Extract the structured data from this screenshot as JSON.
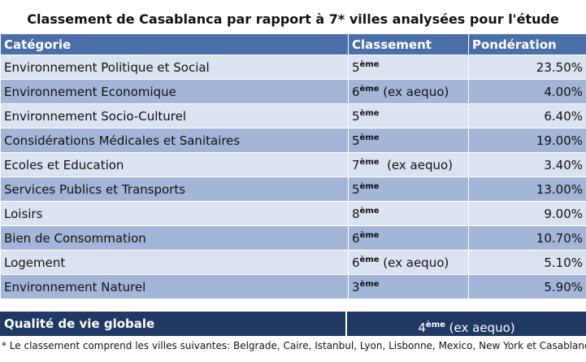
{
  "title": "Classement de Casablanca par rapport à 7* villes analysées pour l'étude",
  "headers": [
    "Catégorie",
    "Classement",
    "Pondération"
  ],
  "rows": [
    {
      "category": "Environnement Politique et Social",
      "rank": "5",
      "sup": "ème",
      "extra": "",
      "weight": "23.50%"
    },
    {
      "category": "Environnement Economique",
      "rank": "6",
      "sup": "ème",
      "extra": " (ex aequo)",
      "weight": "4.00%"
    },
    {
      "category": "Environnement Socio-Culturel",
      "rank": "5",
      "sup": "ème",
      "extra": "",
      "weight": "6.40%"
    },
    {
      "category": "Considérations Médicales et Sanitaires",
      "rank": "5",
      "sup": "ème",
      "extra": "",
      "weight": "19.00%"
    },
    {
      "category": "Ecoles et Education",
      "rank": "7",
      "sup": "ème",
      "extra": "  (ex aequo)",
      "weight": "3.40%"
    },
    {
      "category": "Services Publics et Transports",
      "rank": "5",
      "sup": "ème",
      "extra": "",
      "weight": "13.00%"
    },
    {
      "category": "Loisirs",
      "rank": "8",
      "sup": "ème",
      "extra": "",
      "weight": "9.00%"
    },
    {
      "category": "Bien de Consommation",
      "rank": "6",
      "sup": "ème",
      "extra": "",
      "weight": "10.70%"
    },
    {
      "category": "Logement",
      "rank": "6",
      "sup": "ème",
      "extra": " (ex aequo)",
      "weight": "5.10%"
    },
    {
      "category": "Environnement Naturel",
      "rank": "3",
      "sup": "ème",
      "extra": "",
      "weight": "5.90%"
    }
  ],
  "summary": {
    "label": "Qualité de vie globale",
    "rank": "4",
    "sup": "ème",
    "extra": " (ex aequo)"
  },
  "footnote": "* Le classement comprend les villes suivantes: Belgrade, Caire, Istanbul, Lyon, Lisbonne, Mexico, New York et Casablanca.",
  "colors": {
    "header": "#4a6fa8",
    "row_light": "#dbe3f0",
    "row_dark": "#a3b6d7",
    "summary": "#1f3864"
  }
}
